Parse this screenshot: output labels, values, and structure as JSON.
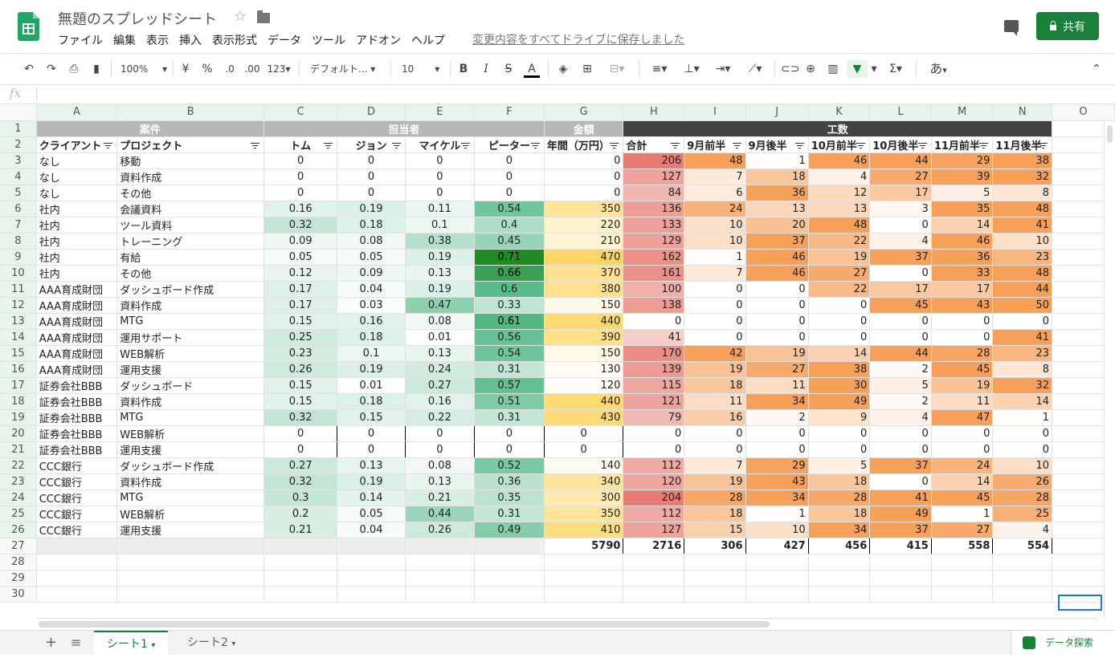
{
  "app": {
    "title": "無題のスプレッドシート",
    "save_status": "変更内容をすべてドライブに保存しました",
    "share_label": "共有"
  },
  "menu": [
    "ファイル",
    "編集",
    "表示",
    "挿入",
    "表示形式",
    "データ",
    "ツール",
    "アドオン",
    "ヘルプ"
  ],
  "toolbar": {
    "zoom": "100%",
    "currency": "¥",
    "percent": "%",
    "dec_decrease": ".0",
    "dec_increase": ".00",
    "format_more": "123",
    "font": "デフォルト...",
    "font_size": "10",
    "bold": "B",
    "italic": "I",
    "strike": "S",
    "text_color": "A",
    "sigma": "Σ",
    "ime": "あ"
  },
  "formula_bar": {
    "fx": "fx",
    "value": ""
  },
  "columns": [
    "A",
    "B",
    "C",
    "D",
    "E",
    "F",
    "G",
    "H",
    "I",
    "J",
    "K",
    "L",
    "M",
    "N",
    "O"
  ],
  "group_headers": {
    "case": "案件",
    "assignee": "担当者",
    "amount": "金額",
    "hours": "工数"
  },
  "headers": [
    "クライアント",
    "プロジェクト",
    "トム",
    "ジョン",
    "マイケル",
    "ピーター",
    "年間（万円）",
    "合計",
    "9月前半",
    "9月後半",
    "10月前半",
    "10月後半",
    "11月前半",
    "11月後半"
  ],
  "rows": [
    [
      "なし",
      "移動",
      "0",
      "0",
      "0",
      "0",
      "0",
      "206",
      "48",
      "1",
      "46",
      "44",
      "29",
      "38"
    ],
    [
      "なし",
      "資料作成",
      "0",
      "0",
      "0",
      "0",
      "0",
      "127",
      "7",
      "18",
      "4",
      "27",
      "39",
      "32"
    ],
    [
      "なし",
      "その他",
      "0",
      "0",
      "0",
      "0",
      "0",
      "84",
      "6",
      "36",
      "12",
      "17",
      "5",
      "8"
    ],
    [
      "社内",
      "会議資料",
      "0.16",
      "0.19",
      "0.11",
      "0.54",
      "350",
      "136",
      "24",
      "13",
      "13",
      "3",
      "35",
      "48"
    ],
    [
      "社内",
      "ツール資料",
      "0.32",
      "0.18",
      "0.1",
      "0.4",
      "220",
      "133",
      "10",
      "20",
      "48",
      "0",
      "14",
      "41"
    ],
    [
      "社内",
      "トレーニング",
      "0.09",
      "0.08",
      "0.38",
      "0.45",
      "210",
      "129",
      "10",
      "37",
      "22",
      "4",
      "46",
      "10"
    ],
    [
      "社内",
      "有給",
      "0.05",
      "0.05",
      "0.19",
      "0.71",
      "470",
      "162",
      "1",
      "46",
      "19",
      "37",
      "36",
      "23"
    ],
    [
      "社内",
      "その他",
      "0.12",
      "0.09",
      "0.13",
      "0.66",
      "370",
      "161",
      "7",
      "46",
      "27",
      "0",
      "33",
      "48"
    ],
    [
      "AAA育成財団",
      "ダッシュボード作成",
      "0.17",
      "0.04",
      "0.19",
      "0.6",
      "380",
      "100",
      "0",
      "0",
      "22",
      "17",
      "17",
      "44"
    ],
    [
      "AAA育成財団",
      "資料作成",
      "0.17",
      "0.03",
      "0.47",
      "0.33",
      "150",
      "138",
      "0",
      "0",
      "0",
      "45",
      "43",
      "50"
    ],
    [
      "AAA育成財団",
      "MTG",
      "0.15",
      "0.16",
      "0.08",
      "0.61",
      "440",
      "0",
      "0",
      "0",
      "0",
      "0",
      "0",
      "0"
    ],
    [
      "AAA育成財団",
      "運用サポート",
      "0.25",
      "0.18",
      "0.01",
      "0.56",
      "390",
      "41",
      "0",
      "0",
      "0",
      "0",
      "0",
      "41"
    ],
    [
      "AAA育成財団",
      "WEB解析",
      "0.23",
      "0.1",
      "0.13",
      "0.54",
      "150",
      "170",
      "42",
      "19",
      "14",
      "44",
      "28",
      "23"
    ],
    [
      "AAA育成財団",
      "運用支援",
      "0.26",
      "0.19",
      "0.24",
      "0.31",
      "130",
      "139",
      "19",
      "27",
      "38",
      "2",
      "45",
      "8"
    ],
    [
      "証券会社BBB",
      "ダッシュボード",
      "0.15",
      "0.01",
      "0.27",
      "0.57",
      "120",
      "115",
      "18",
      "11",
      "30",
      "5",
      "19",
      "32"
    ],
    [
      "証券会社BBB",
      "資料作成",
      "0.15",
      "0.18",
      "0.16",
      "0.51",
      "440",
      "121",
      "11",
      "34",
      "49",
      "2",
      "11",
      "14"
    ],
    [
      "証券会社BBB",
      "MTG",
      "0.32",
      "0.15",
      "0.22",
      "0.31",
      "430",
      "79",
      "16",
      "2",
      "9",
      "4",
      "47",
      "1"
    ],
    [
      "証券会社BBB",
      "WEB解析",
      "0",
      "0",
      "0",
      "0",
      "0",
      "0",
      "0",
      "0",
      "0",
      "0",
      "0",
      "0"
    ],
    [
      "証券会社BBB",
      "運用支援",
      "0",
      "0",
      "0",
      "0",
      "0",
      "0",
      "0",
      "0",
      "0",
      "0",
      "0",
      "0"
    ],
    [
      "CCC銀行",
      "ダッシュボード作成",
      "0.27",
      "0.13",
      "0.08",
      "0.52",
      "140",
      "112",
      "7",
      "29",
      "5",
      "37",
      "24",
      "10"
    ],
    [
      "CCC銀行",
      "資料作成",
      "0.32",
      "0.19",
      "0.13",
      "0.36",
      "340",
      "120",
      "19",
      "43",
      "18",
      "0",
      "14",
      "26"
    ],
    [
      "CCC銀行",
      "MTG",
      "0.3",
      "0.14",
      "0.21",
      "0.35",
      "300",
      "204",
      "28",
      "34",
      "28",
      "41",
      "45",
      "28"
    ],
    [
      "CCC銀行",
      "WEB解析",
      "0.2",
      "0.05",
      "0.44",
      "0.31",
      "350",
      "112",
      "18",
      "1",
      "18",
      "49",
      "1",
      "25"
    ],
    [
      "CCC銀行",
      "運用支援",
      "0.21",
      "0.04",
      "0.26",
      "0.49",
      "410",
      "127",
      "15",
      "10",
      "34",
      "37",
      "27",
      "4"
    ]
  ],
  "totals": [
    "",
    "",
    "",
    "",
    "",
    "",
    "5790",
    "2716",
    "306",
    "427",
    "456",
    "415",
    "558",
    "554"
  ],
  "row_numbers": [
    "1",
    "2",
    "3",
    "4",
    "5",
    "6",
    "7",
    "8",
    "9",
    "10",
    "11",
    "12",
    "13",
    "14",
    "15",
    "16",
    "17",
    "18",
    "19",
    "20",
    "21",
    "22",
    "23",
    "24",
    "25",
    "26",
    "27",
    "28",
    "29",
    "30"
  ],
  "sheets": {
    "add": "+",
    "list": "≡",
    "tabs": [
      "シート1",
      "シート2"
    ]
  },
  "explore": "データ探索",
  "colors": {
    "accent": "#188038",
    "group_grey": "#b7b7b7",
    "group_dark": "#434343",
    "assignee_scale": [
      "#ffffff",
      "#b7e1cd",
      "#57bb8a",
      "#0b7a00"
    ],
    "amount_scale": [
      "#ffffff",
      "#ffd666"
    ],
    "total_scale": [
      "#ffffff",
      "#e67c73"
    ],
    "hours_scale": [
      "#ffffff",
      "#f6a05a"
    ]
  }
}
